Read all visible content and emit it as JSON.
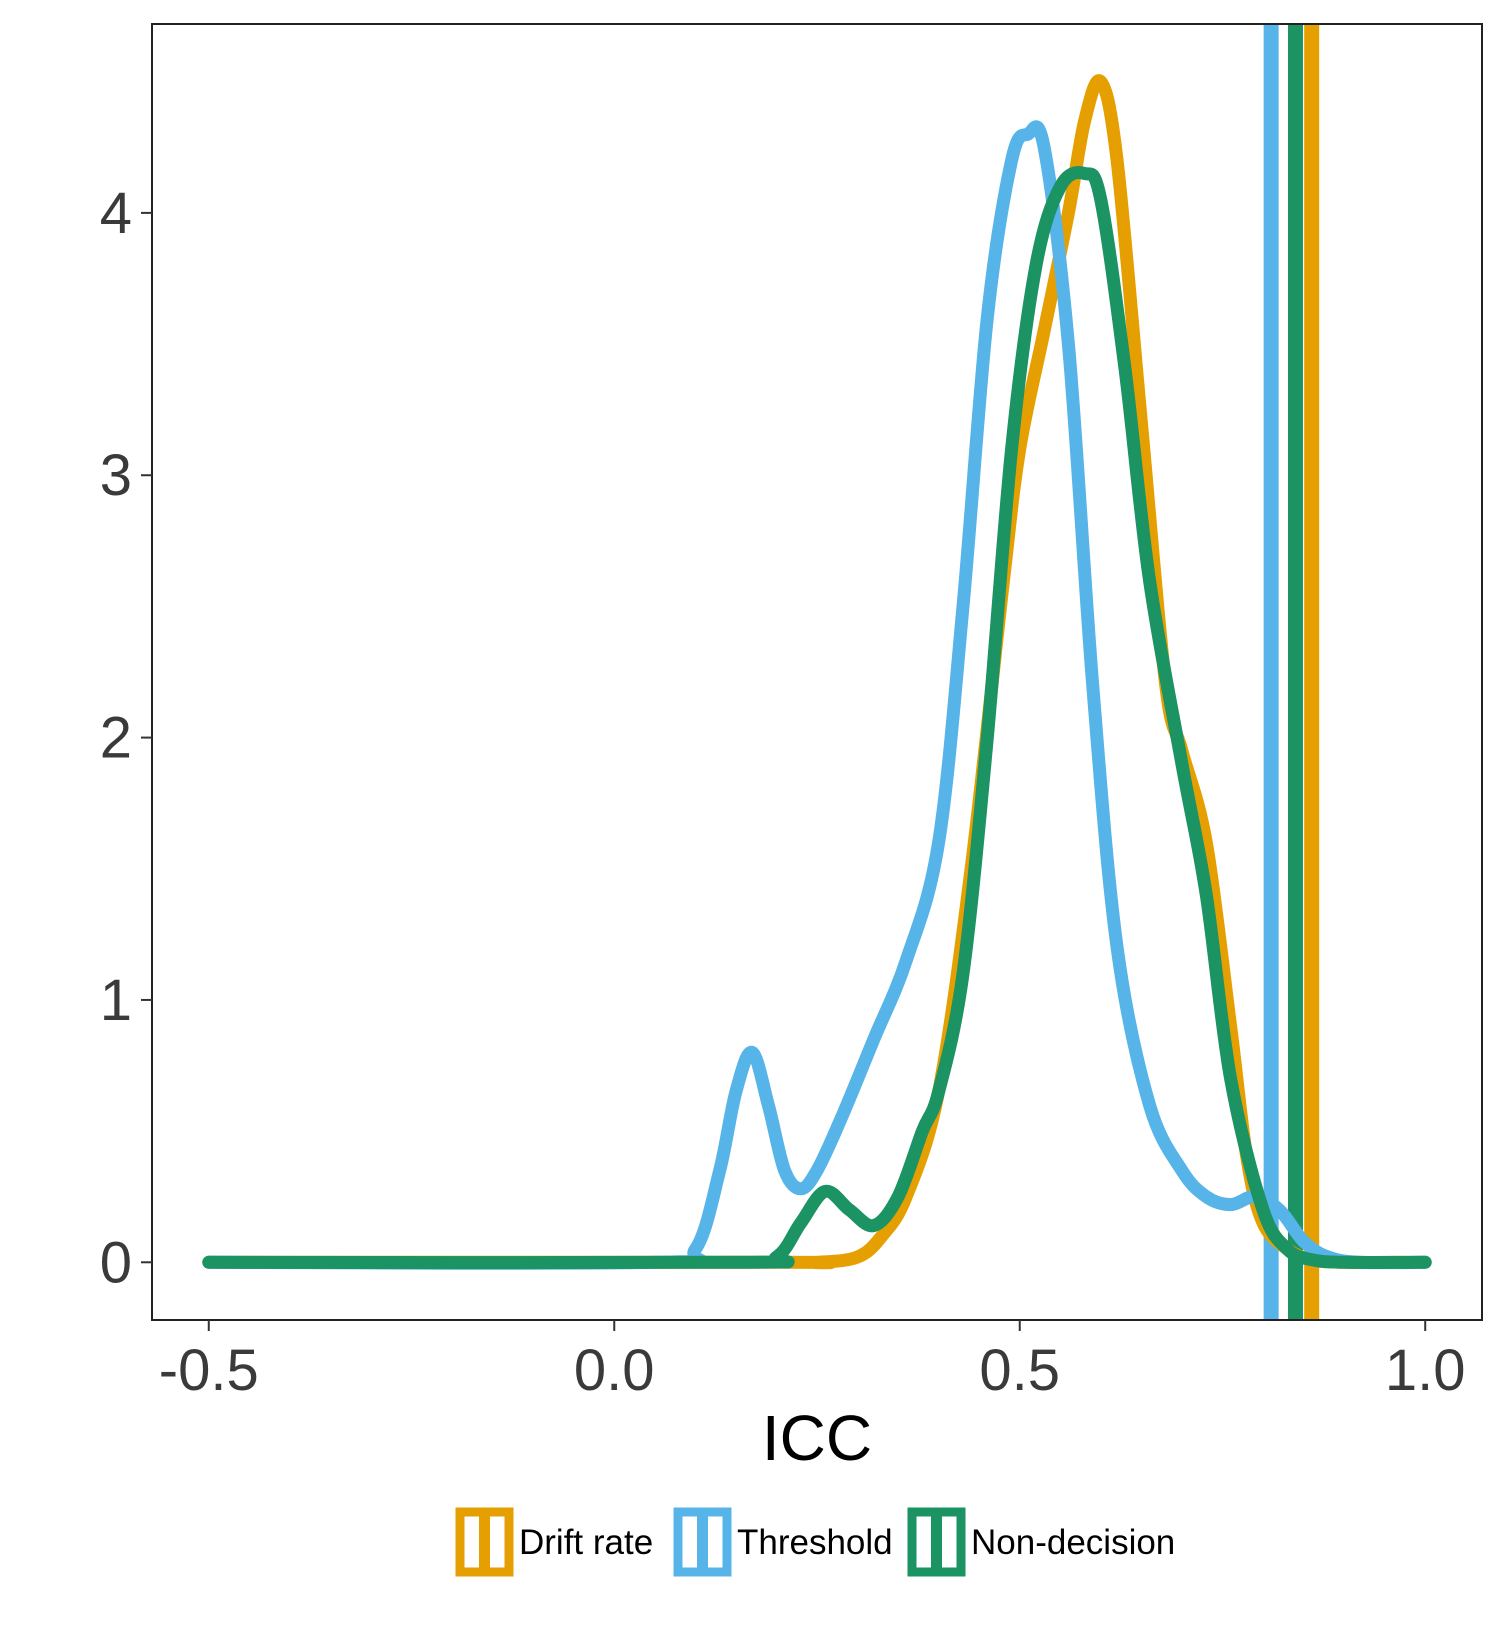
{
  "chart_data": {
    "type": "line",
    "title": "",
    "xlabel": "ICC",
    "ylabel": "",
    "xlim": [
      -0.57,
      1.07
    ],
    "ylim": [
      -0.22,
      4.72
    ],
    "x_ticks": [
      "-0.5",
      "0.0",
      "0.5",
      "1.0"
    ],
    "x_tick_values": [
      -0.5,
      0.0,
      0.5,
      1.0
    ],
    "y_ticks": [
      "0",
      "1",
      "2",
      "3",
      "4"
    ],
    "y_tick_values": [
      0,
      1,
      2,
      3,
      4
    ],
    "grid": false,
    "legend_position": "bottom",
    "series": [
      {
        "name": "Drift rate",
        "color": "#E69F00",
        "x": [
          -0.5,
          0.2,
          0.25,
          0.3,
          0.33,
          0.36,
          0.4,
          0.44,
          0.48,
          0.5,
          0.53,
          0.56,
          0.58,
          0.6,
          0.62,
          0.65,
          0.68,
          0.7,
          0.73,
          0.76,
          0.78,
          0.8,
          0.83,
          0.86,
          0.9,
          1.0
        ],
        "y": [
          0.0,
          0.0,
          0.0,
          0.02,
          0.1,
          0.25,
          0.65,
          1.5,
          2.6,
          3.1,
          3.55,
          4.0,
          4.35,
          4.5,
          4.2,
          3.2,
          2.2,
          1.95,
          1.6,
          0.9,
          0.4,
          0.15,
          0.05,
          0.01,
          0.0,
          0.0
        ],
        "vline": 0.86
      },
      {
        "name": "Threshold",
        "color": "#56B4E9",
        "x": [
          -0.5,
          0.05,
          0.1,
          0.13,
          0.15,
          0.17,
          0.19,
          0.21,
          0.23,
          0.25,
          0.28,
          0.32,
          0.36,
          0.4,
          0.43,
          0.46,
          0.49,
          0.51,
          0.53,
          0.56,
          0.59,
          0.62,
          0.66,
          0.7,
          0.73,
          0.76,
          0.79,
          0.82,
          0.85,
          0.88,
          0.92,
          1.0
        ],
        "y": [
          0.0,
          0.0,
          0.05,
          0.35,
          0.65,
          0.8,
          0.6,
          0.35,
          0.28,
          0.35,
          0.55,
          0.85,
          1.15,
          1.6,
          2.5,
          3.6,
          4.2,
          4.3,
          4.25,
          3.5,
          2.2,
          1.2,
          0.6,
          0.35,
          0.25,
          0.22,
          0.25,
          0.2,
          0.08,
          0.02,
          0.0,
          0.0
        ],
        "vline": 0.81
      },
      {
        "name": "Non-decision",
        "color": "#1B9362",
        "x": [
          -0.5,
          0.15,
          0.2,
          0.23,
          0.26,
          0.29,
          0.32,
          0.35,
          0.38,
          0.4,
          0.43,
          0.46,
          0.49,
          0.52,
          0.55,
          0.58,
          0.6,
          0.63,
          0.66,
          0.7,
          0.73,
          0.76,
          0.8,
          0.83,
          0.86,
          0.9,
          1.0
        ],
        "y": [
          0.0,
          0.0,
          0.02,
          0.15,
          0.27,
          0.2,
          0.14,
          0.25,
          0.5,
          0.65,
          1.1,
          2.0,
          3.1,
          3.8,
          4.1,
          4.15,
          4.05,
          3.4,
          2.6,
          1.9,
          1.4,
          0.7,
          0.2,
          0.05,
          0.01,
          0.0,
          0.0
        ],
        "vline": 0.84
      }
    ]
  }
}
